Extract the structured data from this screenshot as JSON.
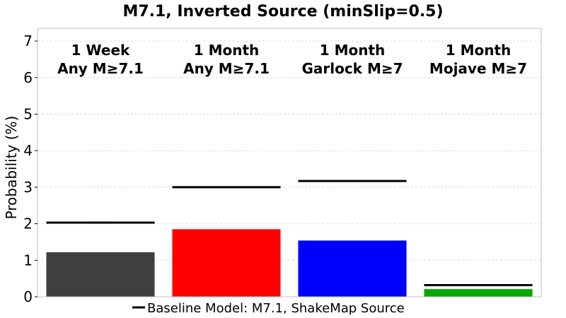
{
  "chart_data": {
    "type": "bar",
    "title": "M7.1, Inverted Source (minSlip=0.5)",
    "xlabel": "",
    "ylabel": "Probability (%)",
    "ylim": [
      0,
      7.35
    ],
    "yticks": [
      "0",
      "1",
      "2",
      "3",
      "4",
      "5",
      "6",
      "7"
    ],
    "grid": true,
    "legend_position": "bottom",
    "categories": [
      {
        "line1": "1 Week",
        "line2": "Any M≥7.1"
      },
      {
        "line1": "1 Month",
        "line2": "Any M≥7.1"
      },
      {
        "line1": "1 Month",
        "line2": "Garlock M≥7"
      },
      {
        "line1": "1 Month",
        "line2": "Mojave M≥7"
      }
    ],
    "values": [
      1.22,
      1.85,
      1.54,
      0.21
    ],
    "bar_colors": [
      "#3f3f3f",
      "#ff0000",
      "#0000ff",
      "#00aa00"
    ],
    "baseline": {
      "name": "Baseline Model: M7.1, ShakeMap Source",
      "values": [
        2.03,
        3.0,
        3.17,
        0.32
      ],
      "color": "#000000"
    }
  }
}
